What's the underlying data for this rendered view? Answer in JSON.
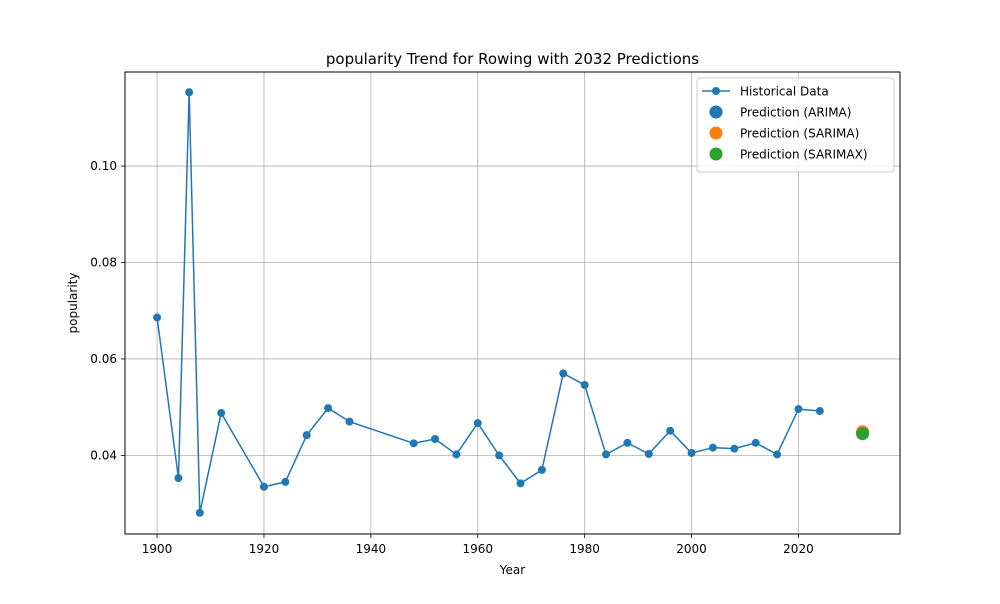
{
  "chart_data": {
    "type": "line",
    "title": "popularity Trend for Rowing with 2032 Predictions",
    "xlabel": "Year",
    "ylabel": "popularity",
    "xlim": [
      1894,
      2039
    ],
    "ylim": [
      0.0237,
      0.1195
    ],
    "grid": true,
    "legend_position": "top-right",
    "x_ticks": [
      1900,
      1920,
      1940,
      1960,
      1980,
      2000,
      2020
    ],
    "x_tick_labels": [
      "1900",
      "1920",
      "1940",
      "1960",
      "1980",
      "2000",
      "2020"
    ],
    "y_ticks": [
      0.04,
      0.06,
      0.08,
      0.1
    ],
    "y_tick_labels": [
      "0.04",
      "0.06",
      "0.08",
      "0.10"
    ],
    "series": [
      {
        "name": "Historical Data",
        "kind": "line-marker",
        "color": "#1f77b4",
        "x": [
          1900,
          1904,
          1906,
          1908,
          1912,
          1920,
          1924,
          1928,
          1932,
          1936,
          1948,
          1952,
          1956,
          1960,
          1964,
          1968,
          1972,
          1976,
          1980,
          1984,
          1988,
          1992,
          1996,
          2000,
          2004,
          2008,
          2012,
          2016,
          2020,
          2024
        ],
        "y": [
          0.0686,
          0.0353,
          0.1153,
          0.0281,
          0.0488,
          0.0335,
          0.0345,
          0.0442,
          0.0498,
          0.047,
          0.0425,
          0.0434,
          0.0402,
          0.0467,
          0.04,
          0.0342,
          0.037,
          0.057,
          0.0546,
          0.0402,
          0.0426,
          0.0403,
          0.0451,
          0.0405,
          0.0416,
          0.0414,
          0.0426,
          0.0402,
          0.0496,
          0.0492
        ]
      },
      {
        "name": "Prediction (ARIMA)",
        "kind": "point",
        "color": "#1f77b4",
        "x": [
          2032
        ],
        "y": [
          0.0447
        ]
      },
      {
        "name": "Prediction (SARIMA)",
        "kind": "point",
        "color": "#ff7f0e",
        "x": [
          2032
        ],
        "y": [
          0.0449
        ]
      },
      {
        "name": "Prediction (SARIMAX)",
        "kind": "point",
        "color": "#2ca02c",
        "x": [
          2032
        ],
        "y": [
          0.0445
        ]
      }
    ]
  }
}
